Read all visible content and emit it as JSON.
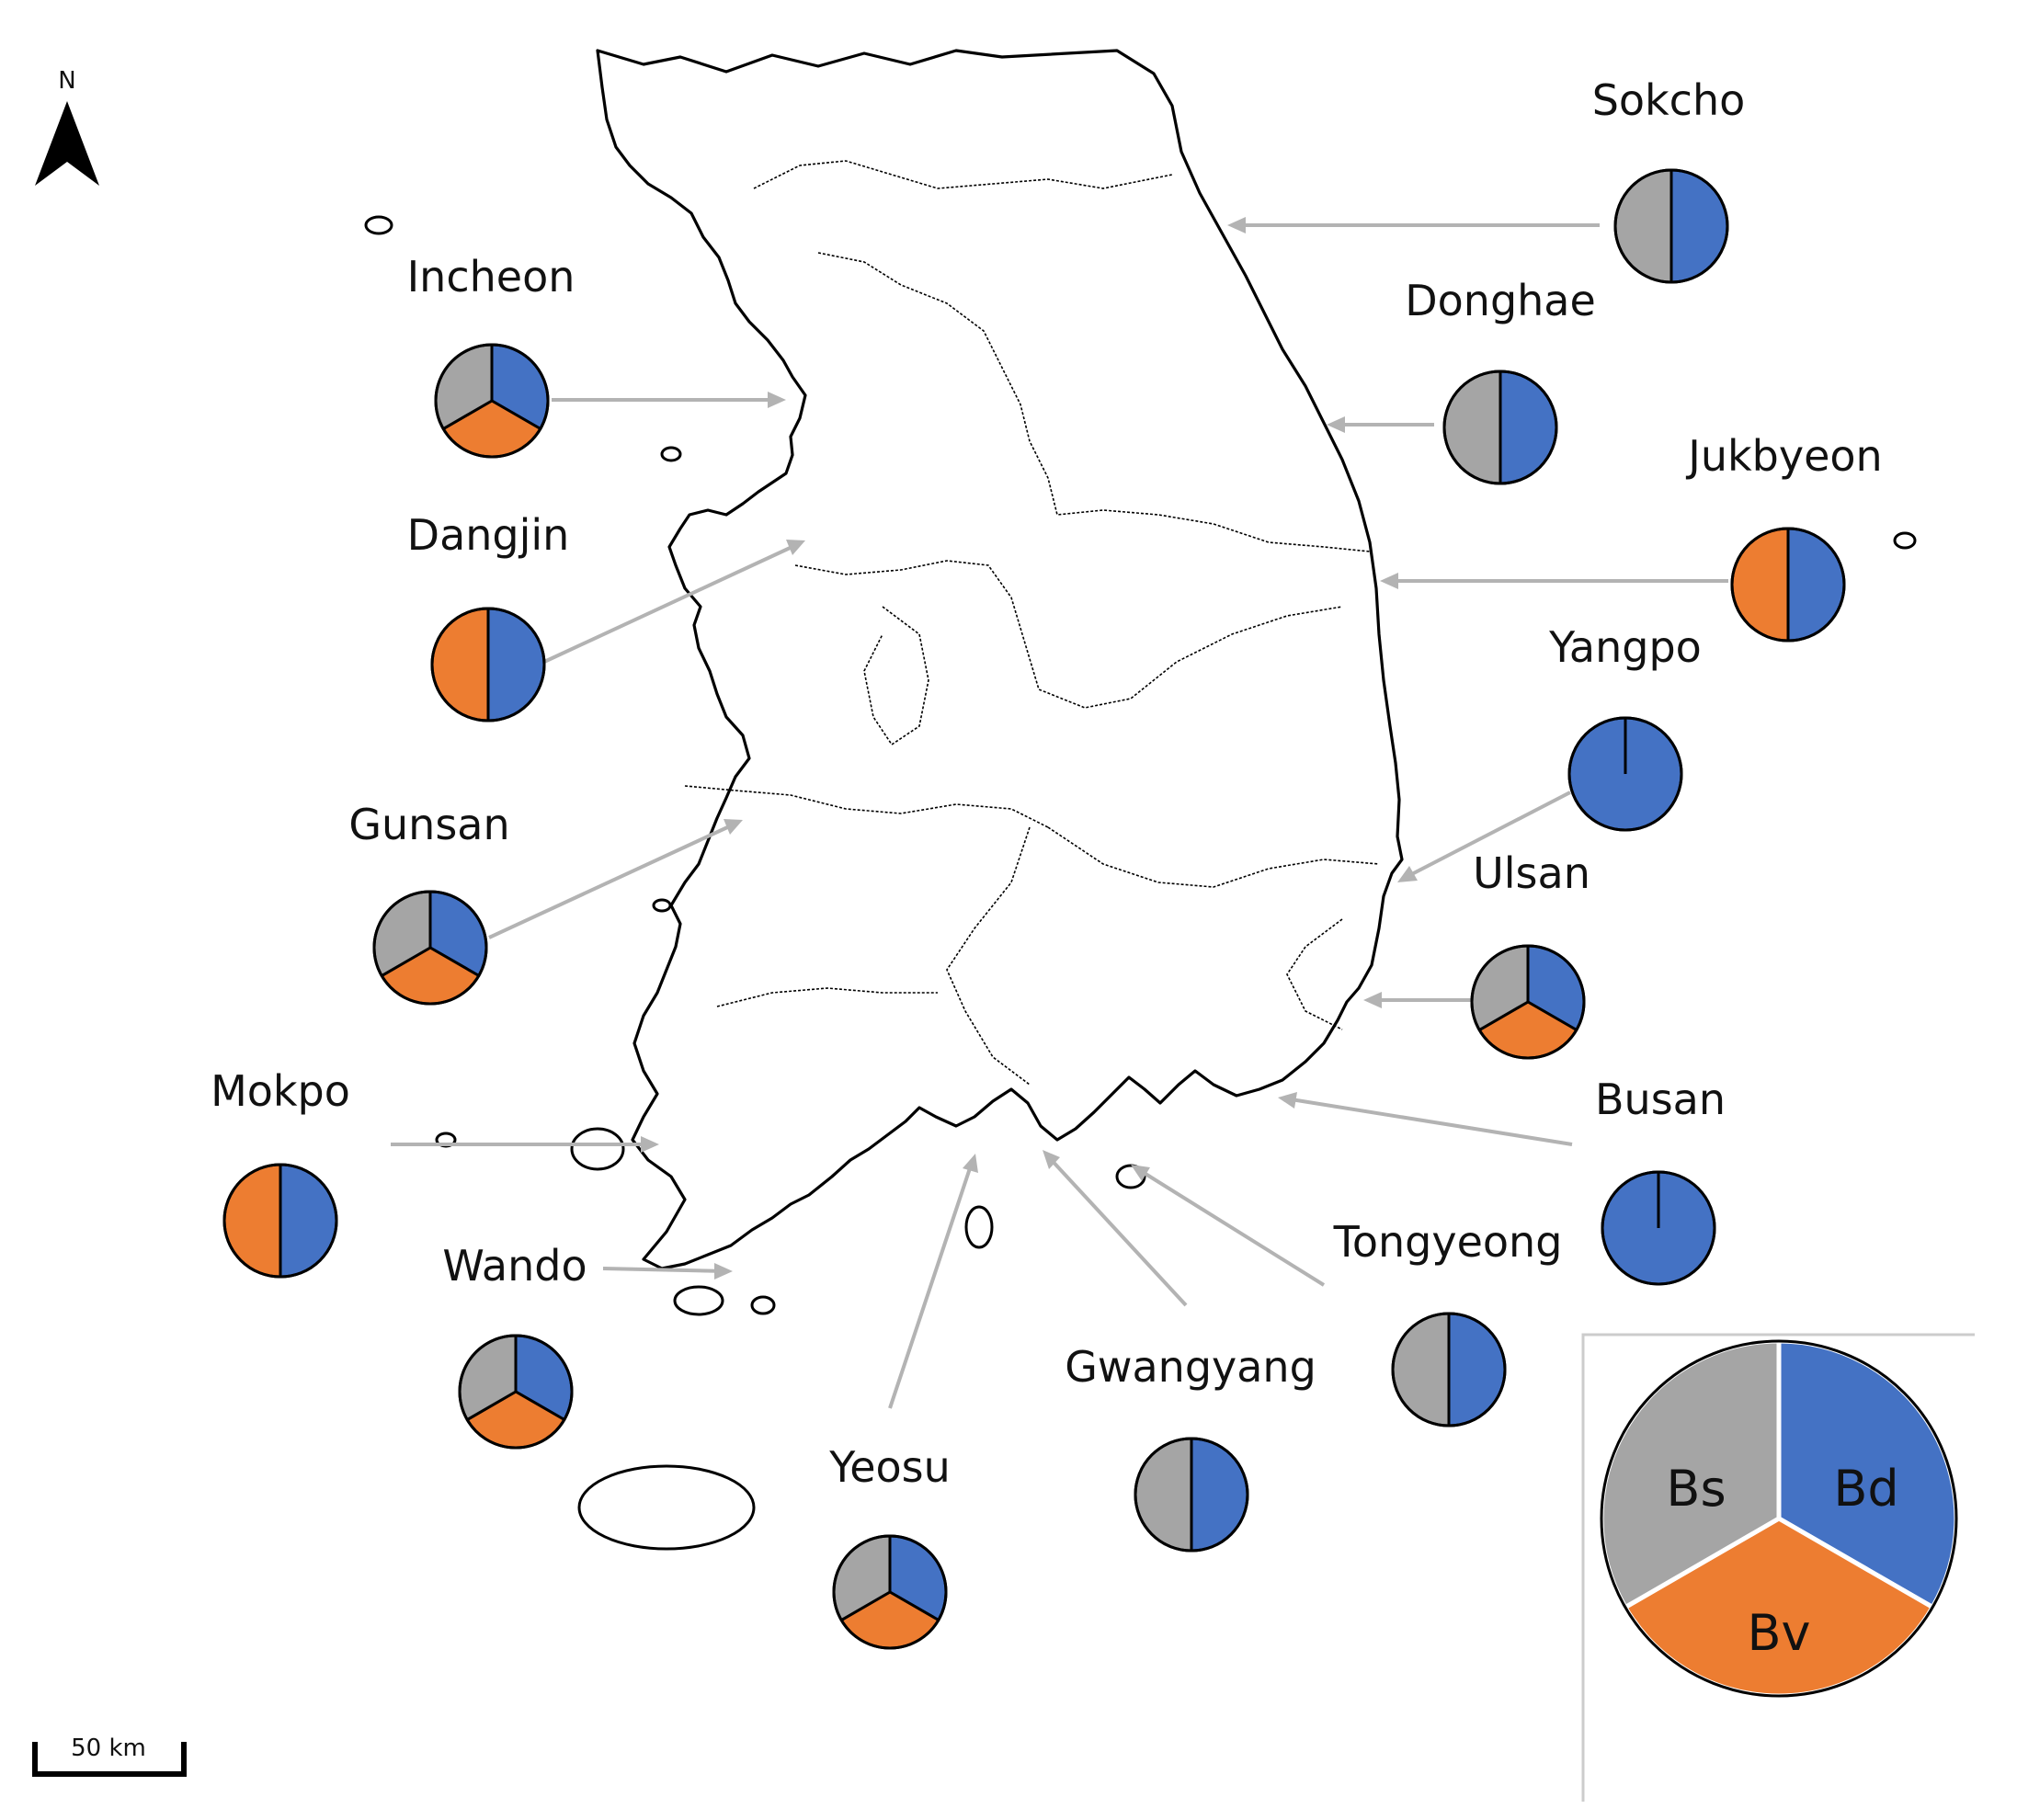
{
  "north_arrow": {
    "label": "N"
  },
  "scale_bar": {
    "label": "50 km"
  },
  "colors": {
    "Bd": "#4472c4",
    "Bv": "#ed7d31",
    "Bs": "#a5a5a5"
  },
  "legend": {
    "segments": [
      {
        "key": "Bd",
        "label": "Bd",
        "fraction": 0.3333
      },
      {
        "key": "Bv",
        "label": "Bv",
        "fraction": 0.3333
      },
      {
        "key": "Bs",
        "label": "Bs",
        "fraction": 0.3334
      }
    ]
  },
  "sites": [
    {
      "id": "sokcho",
      "name": "Sokcho",
      "composition": {
        "Bd": 0.5,
        "Bv": 0,
        "Bs": 0.5
      }
    },
    {
      "id": "donghae",
      "name": "Donghae",
      "composition": {
        "Bd": 0.5,
        "Bv": 0,
        "Bs": 0.5
      }
    },
    {
      "id": "jukbyeon",
      "name": "Jukbyeon",
      "composition": {
        "Bd": 0.5,
        "Bv": 0.5,
        "Bs": 0
      }
    },
    {
      "id": "yangpo",
      "name": "Yangpo",
      "composition": {
        "Bd": 1,
        "Bv": 0,
        "Bs": 0
      }
    },
    {
      "id": "ulsan",
      "name": "Ulsan",
      "composition": {
        "Bd": 0.3333,
        "Bv": 0.3333,
        "Bs": 0.3334
      }
    },
    {
      "id": "busan",
      "name": "Busan",
      "composition": {
        "Bd": 1,
        "Bv": 0,
        "Bs": 0
      }
    },
    {
      "id": "tongyeong",
      "name": "Tongyeong",
      "composition": {
        "Bd": 0.5,
        "Bv": 0,
        "Bs": 0.5
      }
    },
    {
      "id": "gwangyang",
      "name": "Gwangyang",
      "composition": {
        "Bd": 0.5,
        "Bv": 0,
        "Bs": 0.5
      }
    },
    {
      "id": "yeosu",
      "name": "Yeosu",
      "composition": {
        "Bd": 0.3333,
        "Bv": 0.3333,
        "Bs": 0.3334
      }
    },
    {
      "id": "wando",
      "name": "Wando",
      "composition": {
        "Bd": 0.3333,
        "Bv": 0.3333,
        "Bs": 0.3334
      }
    },
    {
      "id": "mokpo",
      "name": "Mokpo",
      "composition": {
        "Bd": 0.5,
        "Bv": 0.5,
        "Bs": 0
      }
    },
    {
      "id": "gunsan",
      "name": "Gunsan",
      "composition": {
        "Bd": 0.3333,
        "Bv": 0.3333,
        "Bs": 0.3334
      }
    },
    {
      "id": "dangjin",
      "name": "Dangjin",
      "composition": {
        "Bd": 0.5,
        "Bv": 0.5,
        "Bs": 0
      }
    },
    {
      "id": "incheon",
      "name": "Incheon",
      "composition": {
        "Bd": 0.3333,
        "Bv": 0.3333,
        "Bs": 0.3334
      }
    }
  ]
}
